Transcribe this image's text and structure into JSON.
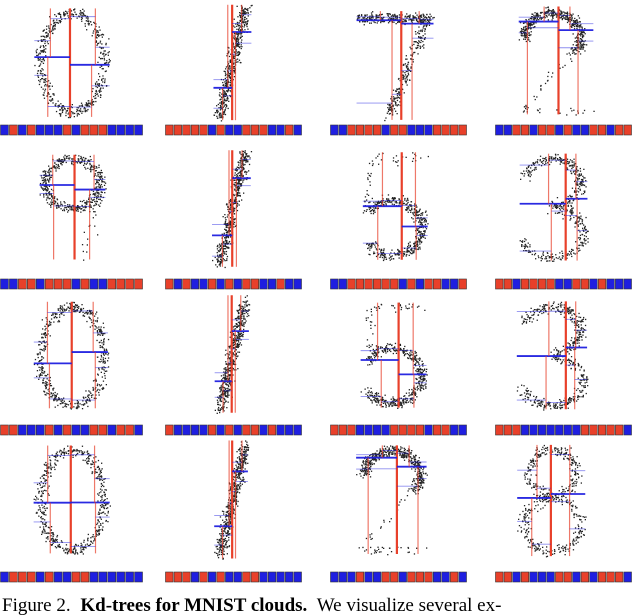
{
  "figure": {
    "caption": {
      "label": "Figure 2.",
      "title": "Kd-trees for MNIST clouds.",
      "text": "We visualize several ex-"
    }
  }
}
